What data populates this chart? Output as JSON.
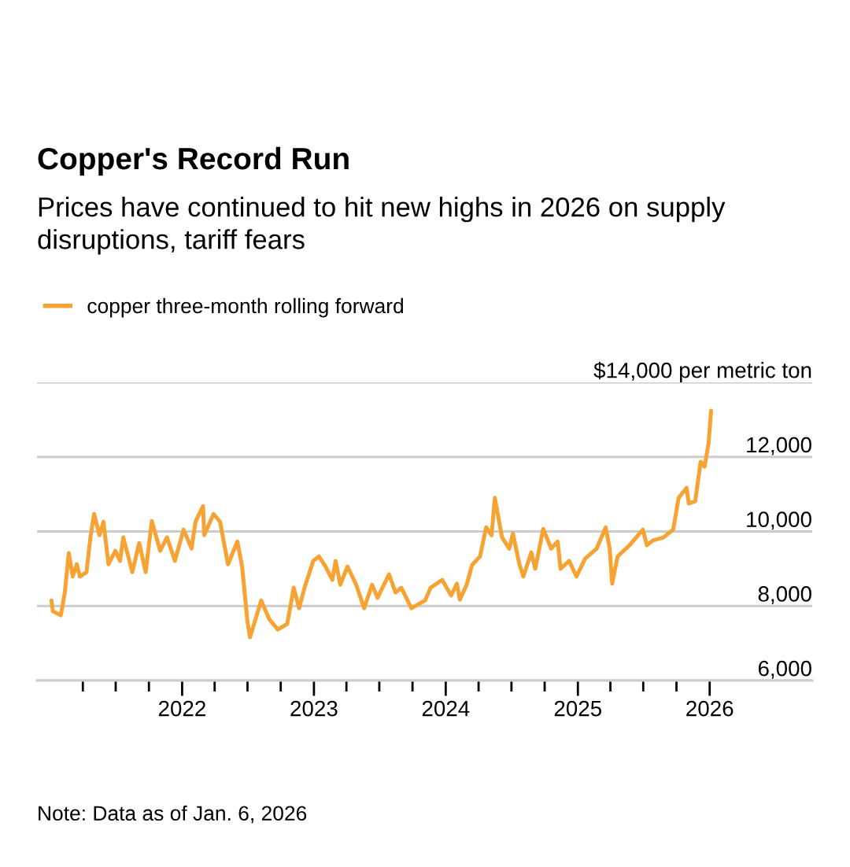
{
  "chart_data": {
    "type": "line",
    "title": "Copper's Record Run",
    "subtitle": "Prices have continued to hit new highs in 2026 on supply disruptions, tariff fears",
    "annotations": [
      "Note: Data as of Jan. 6, 2026"
    ],
    "xlim": [
      "2020-11-25",
      "2026-10-12"
    ],
    "xticks": [
      {
        "value": "2021-04-01",
        "label": null
      },
      {
        "value": "2021-07-01",
        "label": null
      },
      {
        "value": "2021-10-01",
        "label": null
      },
      {
        "value": "2022-01-01",
        "label": "2022"
      },
      {
        "value": "2022-04-01",
        "label": null
      },
      {
        "value": "2022-07-01",
        "label": null
      },
      {
        "value": "2022-10-01",
        "label": null
      },
      {
        "value": "2023-01-01",
        "label": "2023"
      },
      {
        "value": "2023-04-01",
        "label": null
      },
      {
        "value": "2023-07-01",
        "label": null
      },
      {
        "value": "2023-10-01",
        "label": null
      },
      {
        "value": "2024-01-01",
        "label": "2024"
      },
      {
        "value": "2024-04-01",
        "label": null
      },
      {
        "value": "2024-07-01",
        "label": null
      },
      {
        "value": "2024-10-01",
        "label": null
      },
      {
        "value": "2025-01-01",
        "label": "2025"
      },
      {
        "value": "2025-04-01",
        "label": null
      },
      {
        "value": "2025-07-01",
        "label": null
      },
      {
        "value": "2025-10-01",
        "label": null
      },
      {
        "value": "2026-01-01",
        "label": "2026"
      }
    ],
    "ylim": [
      6000,
      14000
    ],
    "yticks": [
      {
        "value": 6000,
        "label": "6,000"
      },
      {
        "value": 8000,
        "label": "8,000"
      },
      {
        "value": 10000,
        "label": "10,000"
      },
      {
        "value": 12000,
        "label": "12,000"
      },
      {
        "value": 14000,
        "label": "$14,000 per metric ton"
      }
    ],
    "grid": "y",
    "legend": "top left",
    "line_style": "solid",
    "series": [
      {
        "name": "copper three-month rolling forward",
        "color": "#f7a334",
        "x": [
          "2021-01-04",
          "2021-01-08",
          "2021-01-30",
          "2021-02-10",
          "2021-02-21",
          "2021-03-04",
          "2021-03-15",
          "2021-03-24",
          "2021-04-11",
          "2021-04-22",
          "2021-05-02",
          "2021-05-17",
          "2021-05-28",
          "2021-06-11",
          "2021-06-30",
          "2021-07-13",
          "2021-07-22",
          "2021-08-16",
          "2021-09-04",
          "2021-09-22",
          "2021-10-09",
          "2021-11-01",
          "2021-11-20",
          "2021-12-12",
          "2022-01-05",
          "2022-01-27",
          "2022-02-07",
          "2022-02-28",
          "2022-03-03",
          "2022-03-29",
          "2022-04-16",
          "2022-05-08",
          "2022-06-03",
          "2022-06-16",
          "2022-07-01",
          "2022-07-08",
          "2022-08-08",
          "2022-08-30",
          "2022-09-23",
          "2022-10-19",
          "2022-11-06",
          "2022-11-21",
          "2022-12-06",
          "2022-12-30",
          "2023-01-15",
          "2023-02-02",
          "2023-02-21",
          "2023-03-02",
          "2023-03-15",
          "2023-04-04",
          "2023-04-28",
          "2023-05-20",
          "2023-06-11",
          "2023-06-26",
          "2023-07-28",
          "2023-08-15",
          "2023-08-31",
          "2023-09-28",
          "2023-11-05",
          "2023-11-20",
          "2023-12-22",
          "2024-01-16",
          "2024-02-01",
          "2024-02-09",
          "2024-02-28",
          "2024-03-14",
          "2024-04-05",
          "2024-04-22",
          "2024-05-07",
          "2024-05-16",
          "2024-06-05",
          "2024-06-25",
          "2024-07-05",
          "2024-07-23",
          "2024-08-03",
          "2024-08-25",
          "2024-09-05",
          "2024-09-27",
          "2024-10-19",
          "2024-11-06",
          "2024-11-14",
          "2024-12-08",
          "2024-12-28",
          "2025-01-21",
          "2025-02-22",
          "2025-03-19",
          "2025-03-30",
          "2025-04-06",
          "2025-04-21",
          "2025-05-24",
          "2025-06-30",
          "2025-07-11",
          "2025-07-28",
          "2025-08-26",
          "2025-09-22",
          "2025-10-07",
          "2025-10-29",
          "2025-11-04",
          "2025-11-22",
          "2025-12-07",
          "2025-12-18",
          "2025-12-29",
          "2026-01-05"
        ],
        "values": [
          8150,
          7860,
          7750,
          8360,
          9420,
          8790,
          9120,
          8790,
          8910,
          9840,
          10470,
          9900,
          10260,
          9120,
          9480,
          9210,
          9840,
          8910,
          9690,
          8910,
          10280,
          9480,
          9840,
          9210,
          10050,
          9540,
          10260,
          10680,
          9900,
          10470,
          10260,
          9120,
          9730,
          9060,
          7580,
          7160,
          8150,
          7650,
          7370,
          7520,
          8490,
          7940,
          8490,
          9210,
          9330,
          9060,
          8700,
          9210,
          8570,
          9060,
          8570,
          7940,
          8570,
          8220,
          8850,
          8360,
          8490,
          7940,
          8150,
          8490,
          8700,
          8280,
          8600,
          8170,
          8570,
          9100,
          9330,
          10110,
          9900,
          10900,
          9840,
          9540,
          9950,
          9120,
          8790,
          9440,
          9000,
          10070,
          9540,
          9730,
          9000,
          9210,
          8790,
          9270,
          9540,
          10110,
          9540,
          8600,
          9330,
          9630,
          10050,
          9630,
          9760,
          9840,
          10050,
          10900,
          11170,
          10750,
          10810,
          11870,
          11740,
          12370,
          13240
        ]
      }
    ]
  }
}
